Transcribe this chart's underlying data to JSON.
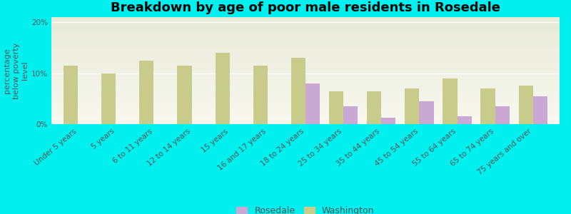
{
  "title": "Breakdown by age of poor male residents in Rosedale",
  "ylabel": "percentage\nbelow poverty\nlevel",
  "background_color": "#00EFEF",
  "plot_bg_gradient_top": "#e8ead8",
  "plot_bg_gradient_bottom": "#f8f8f0",
  "categories": [
    "Under 5 years",
    "5 years",
    "6 to 11 years",
    "12 to 14 years",
    "15 years",
    "16 and 17 years",
    "18 to 24 years",
    "25 to 34 years",
    "35 to 44 years",
    "45 to 54 years",
    "55 to 64 years",
    "65 to 74 years",
    "75 years and over"
  ],
  "rosedale_values": [
    0,
    0,
    0,
    0,
    0,
    0,
    8.0,
    3.5,
    1.2,
    4.5,
    1.5,
    3.5,
    5.5
  ],
  "washington_values": [
    11.5,
    10.0,
    12.5,
    11.5,
    14.0,
    11.5,
    13.0,
    6.5,
    6.5,
    7.0,
    9.0,
    7.0,
    7.5
  ],
  "rosedale_color": "#c9a8d4",
  "washington_color": "#c8cc8a",
  "ylim": [
    0,
    21
  ],
  "yticks": [
    0,
    10,
    20
  ],
  "yticklabels": [
    "0%",
    "10%",
    "20%"
  ],
  "bar_width": 0.38,
  "title_fontsize": 13,
  "axis_label_fontsize": 8,
  "tick_fontsize": 7.5,
  "legend_fontsize": 9
}
